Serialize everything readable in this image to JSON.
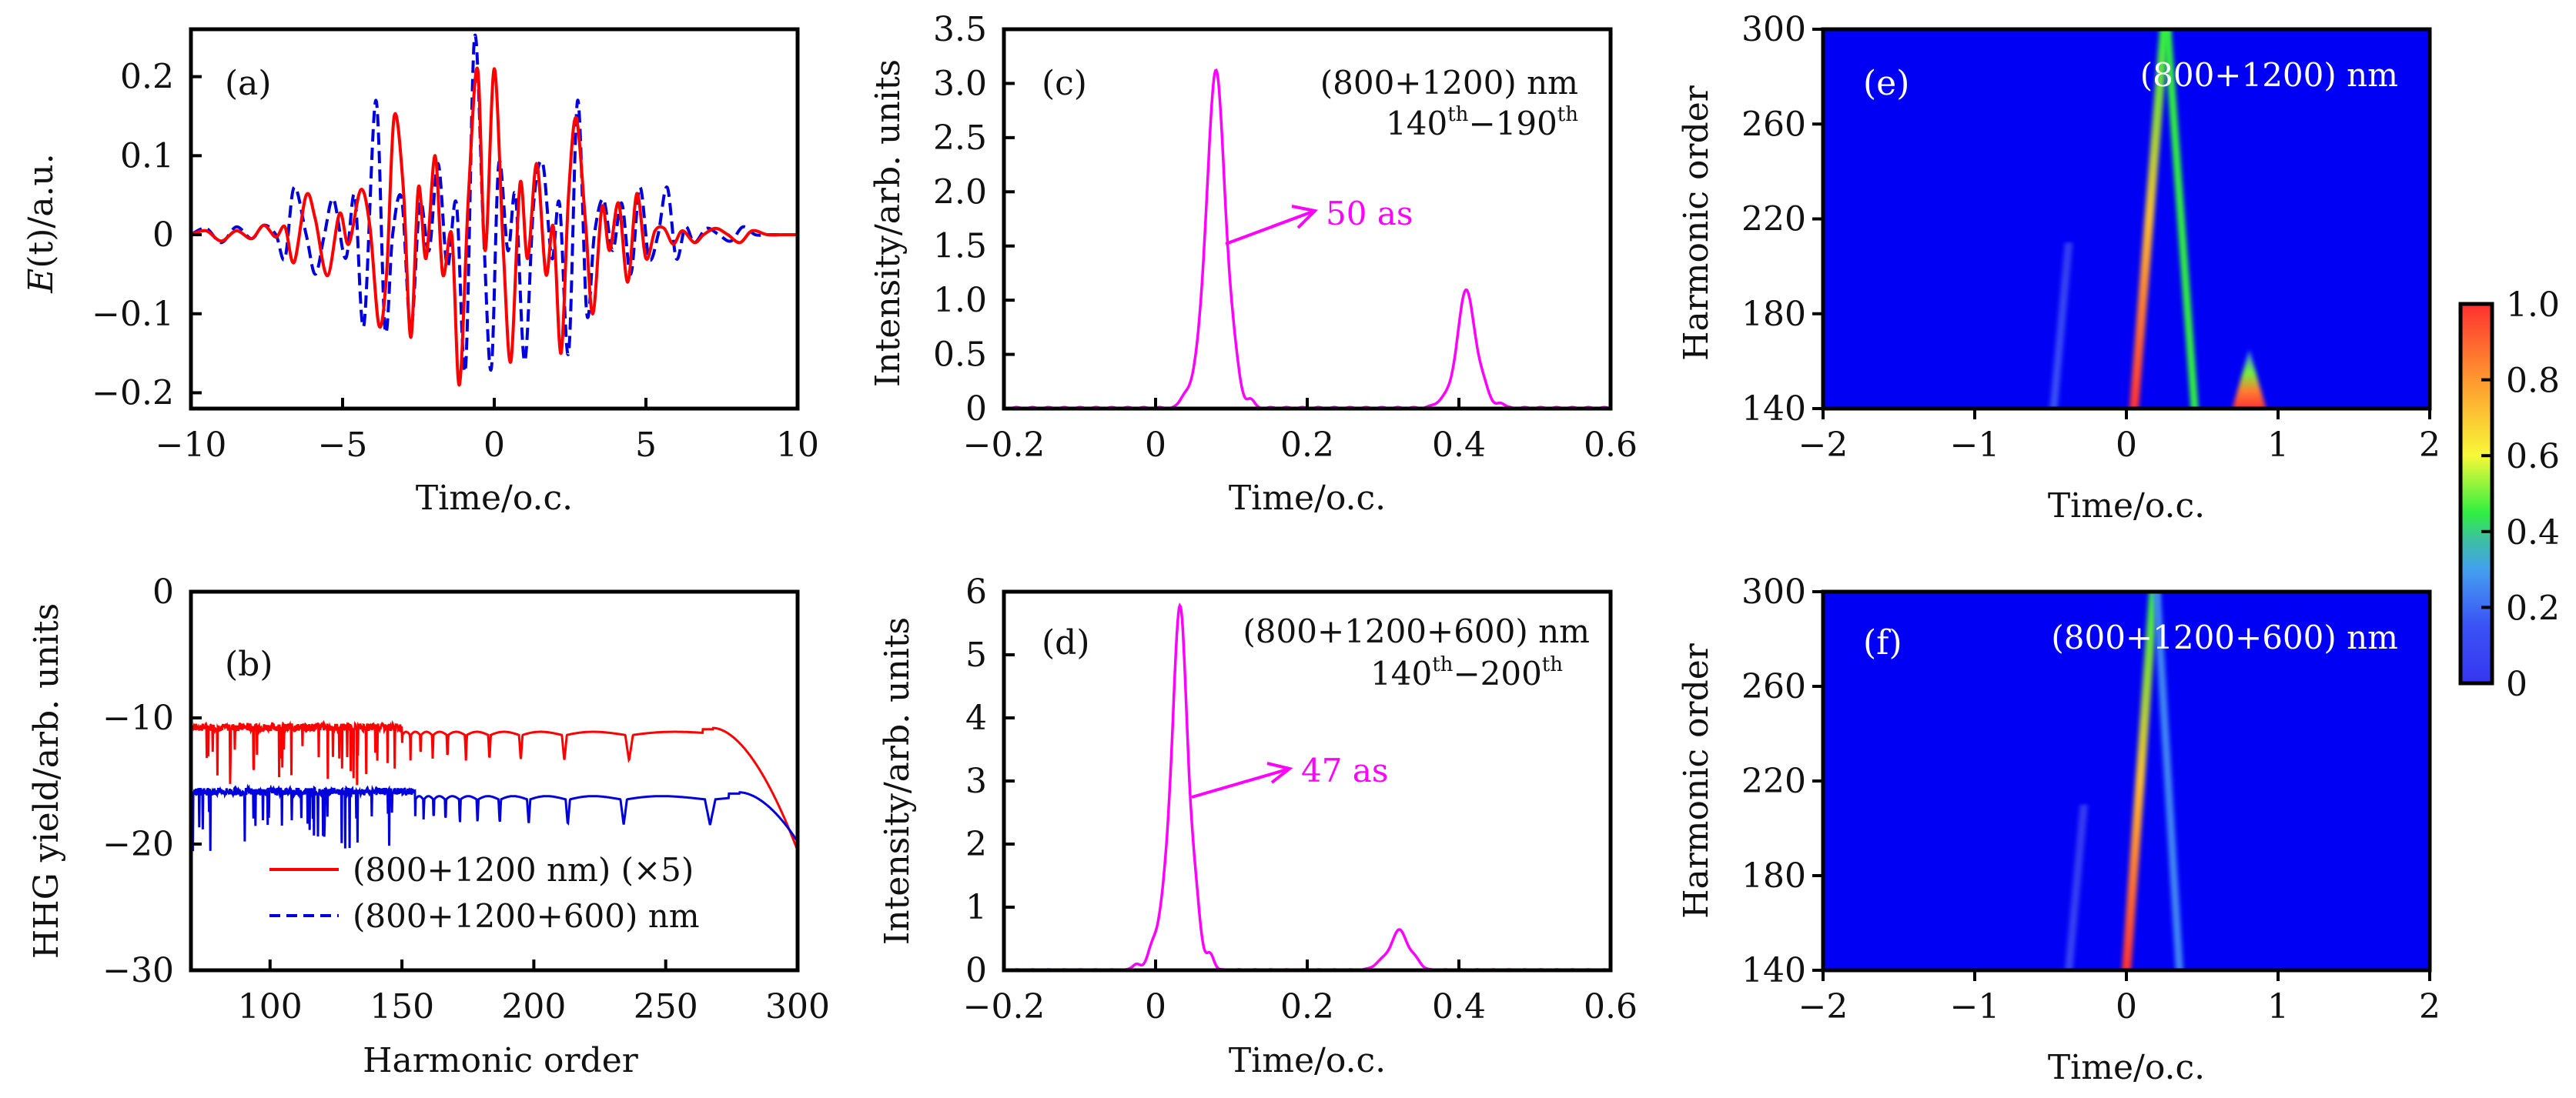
{
  "chart_data": [
    {
      "id": "a",
      "type": "line",
      "panel_label": "(a)",
      "xlabel": "Time/o.c.",
      "ylabel_main": "E",
      "ylabel_arg": "(t)",
      "ylabel_rest": "/a.u.",
      "xlim": [
        -10,
        10
      ],
      "ylim": [
        -0.22,
        0.26
      ],
      "xticks": [
        -10,
        -5,
        0,
        5,
        10
      ],
      "xtick_labels": [
        "−10",
        "−5",
        "0",
        "5",
        "10"
      ],
      "yticks": [
        -0.2,
        -0.1,
        0,
        0.1,
        0.2
      ],
      "ytick_labels": [
        "−0.2",
        "−0.1",
        "0",
        "0.1",
        "0.2"
      ],
      "series": [
        {
          "name": "(800+1200) nm",
          "color": "#ff0000",
          "style": "solid",
          "x": [
            -10,
            -9.5,
            -9,
            -8.5,
            -8,
            -7.6,
            -7.2,
            -6.9,
            -6.6,
            -6.2,
            -5.9,
            -5.5,
            -5.1,
            -4.8,
            -4.4,
            -4.1,
            -3.8,
            -3.55,
            -3.3,
            -3.0,
            -2.75,
            -2.5,
            -2.25,
            -1.95,
            -1.7,
            -1.4,
            -1.15,
            -0.85,
            -0.55,
            -0.3,
            0,
            0.3,
            0.55,
            0.85,
            1.1,
            1.4,
            1.7,
            1.95,
            2.2,
            2.45,
            2.7,
            3.0,
            3.25,
            3.55,
            3.8,
            4.1,
            4.4,
            4.7,
            5.0,
            5.3,
            5.6,
            5.9,
            6.2,
            6.6,
            6.9,
            7.3,
            7.7,
            8.1,
            8.5,
            9,
            9.5,
            10
          ],
          "y": [
            0,
            0.005,
            -0.008,
            0.005,
            -0.005,
            0.012,
            -0.003,
            0.01,
            -0.035,
            0.05,
            0.02,
            -0.052,
            0.027,
            -0.012,
            0.057,
            0.01,
            -0.115,
            -0.05,
            0.15,
            0.06,
            -0.13,
            0.06,
            -0.03,
            0.1,
            -0.05,
            0.0,
            -0.19,
            0.05,
            0.21,
            -0.02,
            0.21,
            -0.02,
            -0.16,
            0.065,
            -0.03,
            0.09,
            -0.05,
            0.01,
            -0.15,
            0.05,
            0.148,
            0.02,
            -0.1,
            0.035,
            -0.02,
            0.04,
            -0.06,
            0.052,
            -0.03,
            0.005,
            0.008,
            -0.012,
            0.005,
            -0.01,
            0.0,
            0.008,
            0,
            -0.01,
            0.005,
            0,
            0,
            0
          ]
        },
        {
          "name": "(800+1200+600) nm",
          "color": "#0000dd",
          "style": "dashed",
          "x": [
            -10,
            -9.5,
            -9,
            -8.5,
            -8,
            -7.6,
            -7.2,
            -6.9,
            -6.6,
            -6.2,
            -5.9,
            -5.6,
            -5.3,
            -4.9,
            -4.6,
            -4.3,
            -3.9,
            -3.6,
            -3.35,
            -3.05,
            -2.75,
            -2.45,
            -2.15,
            -1.85,
            -1.55,
            -1.25,
            -0.95,
            -0.65,
            -0.35,
            -0.1,
            0.15,
            0.45,
            0.7,
            1.0,
            1.3,
            1.6,
            1.9,
            2.15,
            2.45,
            2.75,
            3.05,
            3.3,
            3.6,
            3.9,
            4.2,
            4.5,
            4.8,
            5.1,
            5.4,
            5.7,
            6.0,
            6.3,
            6.6,
            7.0,
            7.4,
            7.8,
            8.2,
            8.6,
            9,
            9.5,
            10
          ],
          "y": [
            0,
            0.008,
            -0.01,
            0.01,
            -0.005,
            0.012,
            0.0,
            -0.03,
            0.06,
            0.0,
            -0.05,
            0.0,
            0.045,
            -0.03,
            0.05,
            -0.115,
            0.17,
            -0.12,
            0.0,
            0.045,
            -0.12,
            0.04,
            -0.02,
            0.09,
            -0.04,
            0.04,
            -0.17,
            0.25,
            0.0,
            -0.17,
            0.09,
            -0.02,
            0.05,
            -0.16,
            0.04,
            0.09,
            -0.03,
            0.04,
            -0.15,
            0.17,
            -0.1,
            0.0,
            0.045,
            -0.02,
            0.04,
            -0.05,
            0.06,
            -0.03,
            0.0,
            0.06,
            -0.03,
            0.01,
            -0.01,
            0.008,
            0,
            -0.008,
            0.01,
            0,
            0,
            0,
            0
          ]
        }
      ]
    },
    {
      "id": "b",
      "type": "line",
      "panel_label": "(b)",
      "xlabel": "Harmonic order",
      "ylabel": "HHG yield/arb. units",
      "xlim": [
        70,
        300
      ],
      "ylim": [
        -30,
        0
      ],
      "xticks": [
        100,
        150,
        200,
        250,
        300
      ],
      "xtick_labels": [
        "100",
        "150",
        "200",
        "250",
        "300"
      ],
      "yticks": [
        -30,
        -20,
        -10,
        0
      ],
      "ytick_labels": [
        "−30",
        "−20",
        "−10",
        "0"
      ],
      "legend_position": "lower-right",
      "series": [
        {
          "name": "(800+1200 nm) (×5)",
          "color": "#ff0000",
          "style": "solid",
          "baseline": -10.8,
          "noise_until": 150,
          "cutoff_peak": 268,
          "cutoff_end": -20.5
        },
        {
          "name": "(800+1200+600) nm",
          "color": "#0000dd",
          "style": "dashed",
          "baseline": -15.9,
          "noise_until": 155,
          "cutoff_peak": 278,
          "cutoff_end": -19.8
        }
      ]
    },
    {
      "id": "c",
      "type": "line",
      "panel_label": "(c)",
      "xlabel": "Time/o.c.",
      "ylabel": "Intensity/arb. units",
      "xlim": [
        -0.2,
        0.6
      ],
      "ylim": [
        0,
        3.5
      ],
      "xticks": [
        -0.2,
        0,
        0.2,
        0.4,
        0.6
      ],
      "xtick_labels": [
        "−0.2",
        "0",
        "0.2",
        "0.4",
        "0.6"
      ],
      "yticks": [
        0,
        0.5,
        1.0,
        1.5,
        2.0,
        2.5,
        3.0,
        3.5
      ],
      "ytick_labels": [
        "0",
        "0.5",
        "1.0",
        "1.5",
        "2.0",
        "2.5",
        "3.0",
        "3.5"
      ],
      "annotation_line1": "(800+1200) nm",
      "annotation_line2_a": "140",
      "annotation_line2_sup": "th",
      "annotation_line2_b": "−190",
      "pulse_label": "50 as",
      "pulse_label_color": "#ff00ff",
      "series": [
        {
          "name": "pulse",
          "color": "#ff00ff",
          "peaks": [
            {
              "t": 0.08,
              "height": 3.05,
              "width": 0.011
            },
            {
              "t": 0.06,
              "height": 0.45,
              "width": 0.01
            },
            {
              "t": 0.102,
              "height": 0.45,
              "width": 0.008
            },
            {
              "t": 0.038,
              "height": 0.1,
              "width": 0.006
            },
            {
              "t": 0.125,
              "height": 0.08,
              "width": 0.005
            },
            {
              "t": 0.41,
              "height": 1.08,
              "width": 0.011
            },
            {
              "t": 0.385,
              "height": 0.1,
              "width": 0.012
            },
            {
              "t": 0.433,
              "height": 0.18,
              "width": 0.007
            },
            {
              "t": 0.455,
              "height": 0.05,
              "width": 0.005
            }
          ]
        }
      ]
    },
    {
      "id": "d",
      "type": "line",
      "panel_label": "(d)",
      "xlabel": "Time/o.c.",
      "ylabel": "Intensity/arb. units",
      "xlim": [
        -0.2,
        0.6
      ],
      "ylim": [
        0,
        6
      ],
      "xticks": [
        -0.2,
        0,
        0.2,
        0.4,
        0.6
      ],
      "xtick_labels": [
        "−0.2",
        "0",
        "0.2",
        "0.4",
        "0.6"
      ],
      "yticks": [
        0,
        1,
        2,
        3,
        4,
        5,
        6
      ],
      "ytick_labels": [
        "0",
        "1",
        "2",
        "3",
        "4",
        "5",
        "6"
      ],
      "annotation_line1": "(800+1200+600) nm",
      "annotation_line2_a": "140",
      "annotation_line2_sup": "th",
      "annotation_line2_b": "−200",
      "pulse_label": "47 as",
      "pulse_label_color": "#ff00ff",
      "series": [
        {
          "name": "pulse",
          "color": "#ff00ff",
          "peaks": [
            {
              "t": 0.033,
              "height": 5.4,
              "width": 0.009
            },
            {
              "t": 0.016,
              "height": 1.4,
              "width": 0.01
            },
            {
              "t": 0.052,
              "height": 1.1,
              "width": 0.007
            },
            {
              "t": -0.005,
              "height": 0.3,
              "width": 0.006
            },
            {
              "t": 0.072,
              "height": 0.25,
              "width": 0.005
            },
            {
              "t": -0.025,
              "height": 0.1,
              "width": 0.005
            },
            {
              "t": 0.322,
              "height": 0.62,
              "width": 0.01
            },
            {
              "t": 0.3,
              "height": 0.15,
              "width": 0.01
            },
            {
              "t": 0.343,
              "height": 0.15,
              "width": 0.007
            }
          ]
        }
      ]
    },
    {
      "id": "e",
      "type": "heatmap",
      "panel_label": "(e)",
      "annotation": "(800+1200) nm",
      "xlabel": "Time/o.c.",
      "ylabel": "Harmonic order",
      "xlim": [
        -2,
        2
      ],
      "ylim": [
        140,
        300
      ],
      "xticks": [
        -2,
        -1,
        0,
        1,
        2
      ],
      "xtick_labels": [
        "−2",
        "−1",
        "0",
        "1",
        "2"
      ],
      "yticks": [
        140,
        180,
        220,
        260,
        300
      ],
      "ytick_labels": [
        "140",
        "180",
        "220",
        "260",
        "300"
      ],
      "bands": [
        {
          "t_start": 0.05,
          "h_start": 140,
          "t_end": 0.25,
          "h_end": 300,
          "intensity_start": 1.0,
          "intensity_end": 0.45
        },
        {
          "t_start": 0.45,
          "h_start": 140,
          "t_end": 0.27,
          "h_end": 300,
          "intensity_start": 0.45,
          "intensity_end": 0.45
        },
        {
          "t_start": -0.48,
          "h_start": 140,
          "t_end": -0.38,
          "h_end": 210,
          "intensity_start": 0.15,
          "intensity_end": 0.05
        }
      ],
      "blobs": [
        {
          "t": 0.81,
          "h": 140,
          "h_top": 165,
          "intensity": 1.0
        }
      ]
    },
    {
      "id": "f",
      "type": "heatmap",
      "panel_label": "(f)",
      "annotation": "(800+1200+600) nm",
      "xlabel": "Time/o.c.",
      "ylabel": "Harmonic order",
      "xlim": [
        -2,
        2
      ],
      "ylim": [
        140,
        300
      ],
      "xticks": [
        -2,
        -1,
        0,
        1,
        2
      ],
      "xtick_labels": [
        "−2",
        "−1",
        "0",
        "1",
        "2"
      ],
      "yticks": [
        140,
        180,
        220,
        260,
        300
      ],
      "ytick_labels": [
        "140",
        "180",
        "220",
        "260",
        "300"
      ],
      "bands": [
        {
          "t_start": 0.0,
          "h_start": 140,
          "t_end": 0.18,
          "h_end": 300,
          "intensity_start": 1.0,
          "intensity_end": 0.45
        },
        {
          "t_start": 0.35,
          "h_start": 140,
          "t_end": 0.2,
          "h_end": 300,
          "intensity_start": 0.25,
          "intensity_end": 0.25
        },
        {
          "t_start": -0.38,
          "h_start": 140,
          "t_end": -0.28,
          "h_end": 210,
          "intensity_start": 0.08,
          "intensity_end": 0.03
        }
      ],
      "blobs": []
    },
    {
      "id": "colorbar",
      "type": "colorbar",
      "range": [
        0,
        1.0
      ],
      "ticks": [
        0,
        0.2,
        0.4,
        0.6,
        0.8,
        1.0
      ],
      "tick_labels": [
        "0",
        "0.2",
        "0.4",
        "0.6",
        "0.8",
        "1.0"
      ],
      "colormap": [
        {
          "v": 0.0,
          "color": "#3636f0"
        },
        {
          "v": 0.15,
          "color": "#3a52f5"
        },
        {
          "v": 0.3,
          "color": "#44a0f0"
        },
        {
          "v": 0.38,
          "color": "#3cc0a0"
        },
        {
          "v": 0.45,
          "color": "#30f040"
        },
        {
          "v": 0.6,
          "color": "#f8f838"
        },
        {
          "v": 0.8,
          "color": "#ff9830"
        },
        {
          "v": 1.0,
          "color": "#ff3030"
        }
      ],
      "background_color": "#0000f5"
    }
  ]
}
